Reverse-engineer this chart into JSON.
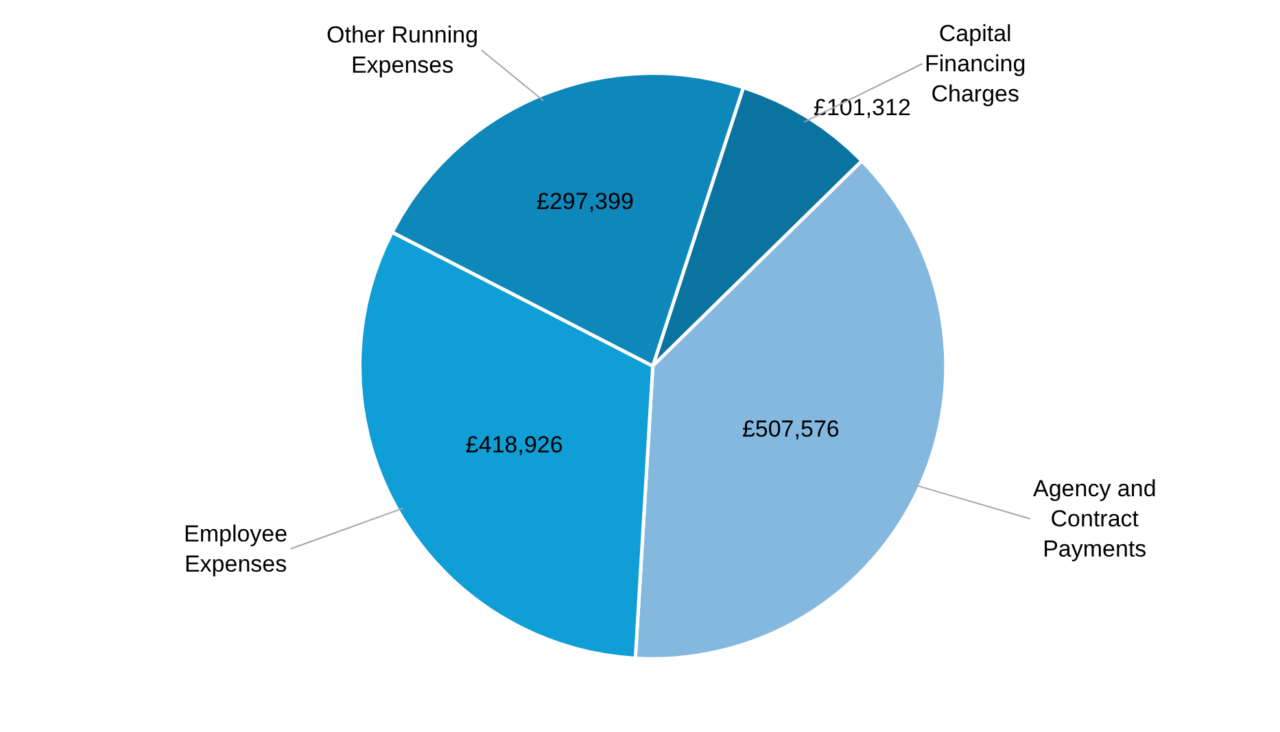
{
  "chart_data": {
    "type": "pie",
    "categories": [
      "Capital Financing Charges",
      "Agency and Contract Payments",
      "Employee Expenses",
      "Other Running Expenses"
    ],
    "values": [
      101312,
      507576,
      418926,
      297399
    ],
    "value_labels": [
      "£101,312",
      "£507,576",
      "£418,926",
      "£297,399"
    ],
    "colors": [
      "#0a73a0",
      "#85b8df",
      "#0f9ed5",
      "#0e87bb"
    ],
    "legend": false
  }
}
